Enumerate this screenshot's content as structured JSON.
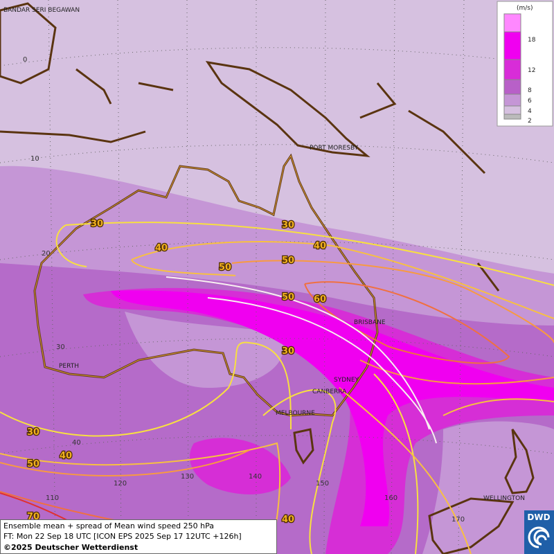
{
  "places": [
    "BANDAR SERI BEGAWAN",
    "PORT MORESBY",
    "BRISBANE",
    "PERTH",
    "SYDNEY",
    "CANBERRA",
    "MELBOURNE",
    "WELLINGTON"
  ],
  "latitude_labels": [
    "0",
    "10",
    "20",
    "30",
    "40"
  ],
  "longitude_labels": [
    "110",
    "120",
    "130",
    "140",
    "150",
    "160",
    "170"
  ],
  "contour_labels": [
    "30",
    "30",
    "40",
    "40",
    "50",
    "50",
    "50",
    "60",
    "30",
    "30",
    "40",
    "50",
    "70",
    "40"
  ],
  "legend": {
    "unit": "(m/s)",
    "levels": [
      "18",
      "12",
      "8",
      "6",
      "4",
      "2"
    ]
  },
  "footer": {
    "line1": "Ensemble mean + spread of Mean wind speed 250 hPa",
    "line2": "FT: Mon 22 Sep 18 UTC [ICON EPS 2025 Sep 17 12UTC +126h]",
    "copyright": "©2025 Deutscher Wetterdienst"
  },
  "logo": "DWD"
}
